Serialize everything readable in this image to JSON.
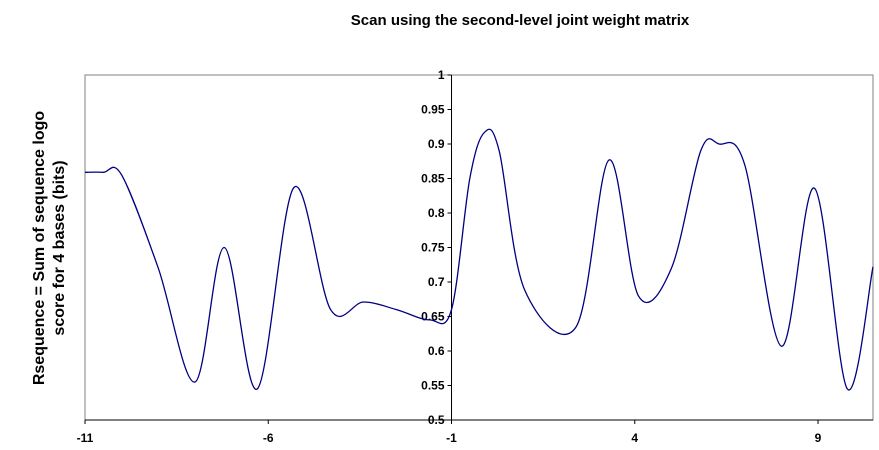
{
  "chart_data": {
    "type": "line",
    "title": "Scan using the second-level joint weight matrix",
    "ylabel_line1": "Rsequence = Sum of sequence logo",
    "ylabel_line2": "score for 4 bases (bits)",
    "xlabel": "",
    "xlim": [
      -11,
      10.5
    ],
    "ylim": [
      0.5,
      1
    ],
    "x_ticks": [
      -11,
      -6,
      -1,
      4,
      9
    ],
    "y_ticks": [
      0.5,
      0.55,
      0.6,
      0.65,
      0.7,
      0.75,
      0.8,
      0.85,
      0.9,
      0.95,
      1
    ],
    "y_tick_labels": [
      "0.5",
      "0.55",
      "0.6",
      "0.65",
      "0.7",
      "0.75",
      "0.8",
      "0.85",
      "0.9",
      "0.95",
      "1"
    ],
    "y_axis_position_x": -1,
    "grid": false,
    "line_color": "#000080",
    "series": [
      {
        "x": [
          -11.0,
          -10.5,
          -10.0,
          -9.0,
          -8.0,
          -7.2,
          -6.3,
          -5.3,
          -4.3,
          -3.4,
          -2.5,
          -1.6,
          -1.0,
          -0.5,
          -0.1,
          0.3,
          1.0,
          2.4,
          3.3,
          4.1,
          5.0,
          5.8,
          6.3,
          7.0,
          8.0,
          8.9,
          9.8,
          10.5
        ],
        "y": [
          0.859,
          0.859,
          0.855,
          0.72,
          0.555,
          0.75,
          0.545,
          0.837,
          0.66,
          0.671,
          0.66,
          0.645,
          0.66,
          0.85,
          0.917,
          0.89,
          0.688,
          0.635,
          0.877,
          0.68,
          0.72,
          0.89,
          0.9,
          0.87,
          0.607,
          0.836,
          0.545,
          0.722
        ]
      }
    ]
  }
}
